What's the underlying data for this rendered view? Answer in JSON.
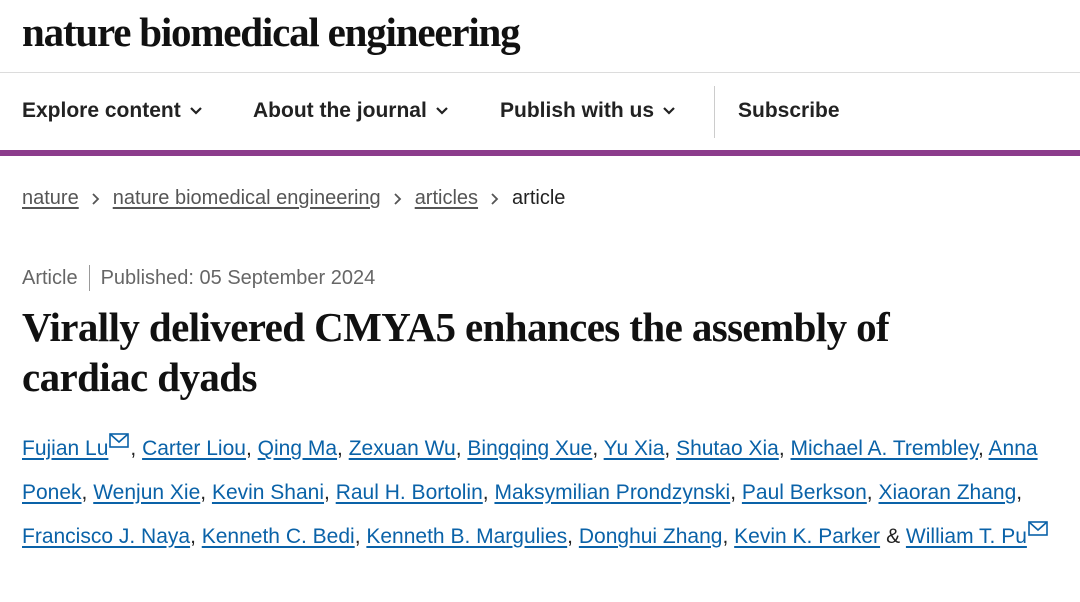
{
  "header": {
    "title": "nature biomedical engineering"
  },
  "nav": [
    "Explore content",
    "About the journal",
    "Publish with us",
    "Subscribe"
  ],
  "breadcrumb": [
    "nature",
    "nature biomedical engineering",
    "articles",
    "article"
  ],
  "article": {
    "type": "Article",
    "published": "Published: 05 September 2024",
    "title": "Virally delivered CMYA5 enhances the assembly of cardiac dyads",
    "authors": [
      {
        "name": "Fujian Lu",
        "email": true,
        "after": ","
      },
      {
        "name": "Carter Liou",
        "after": ","
      },
      {
        "name": "Qing Ma",
        "after": ","
      },
      {
        "name": "Zexuan Wu",
        "after": ","
      },
      {
        "name": "Bingqing Xue",
        "after": ","
      },
      {
        "name": "Yu Xia",
        "after": ","
      },
      {
        "name": "Shutao Xia",
        "after": ","
      },
      {
        "name": "Michael A. Trembley",
        "after": ","
      },
      {
        "name": "Anna Ponek",
        "after": ","
      },
      {
        "name": "Wenjun Xie",
        "after": ","
      },
      {
        "name": "Kevin Shani",
        "after": ","
      },
      {
        "name": "Raul H. Bortolin",
        "after": ","
      },
      {
        "name": "Maksymilian Prondzynski",
        "after": ","
      },
      {
        "name": "Paul Berkson",
        "after": ","
      },
      {
        "name": "Xiaoran Zhang",
        "after": ","
      },
      {
        "name": "Francisco J. Naya",
        "after": ","
      },
      {
        "name": "Kenneth C. Bedi",
        "after": ","
      },
      {
        "name": "Kenneth B. Margulies",
        "after": ","
      },
      {
        "name": "Donghui Zhang",
        "after": ","
      },
      {
        "name": "Kevin K. Parker",
        "after": "&"
      },
      {
        "name": "William T. Pu",
        "email": true
      }
    ]
  }
}
